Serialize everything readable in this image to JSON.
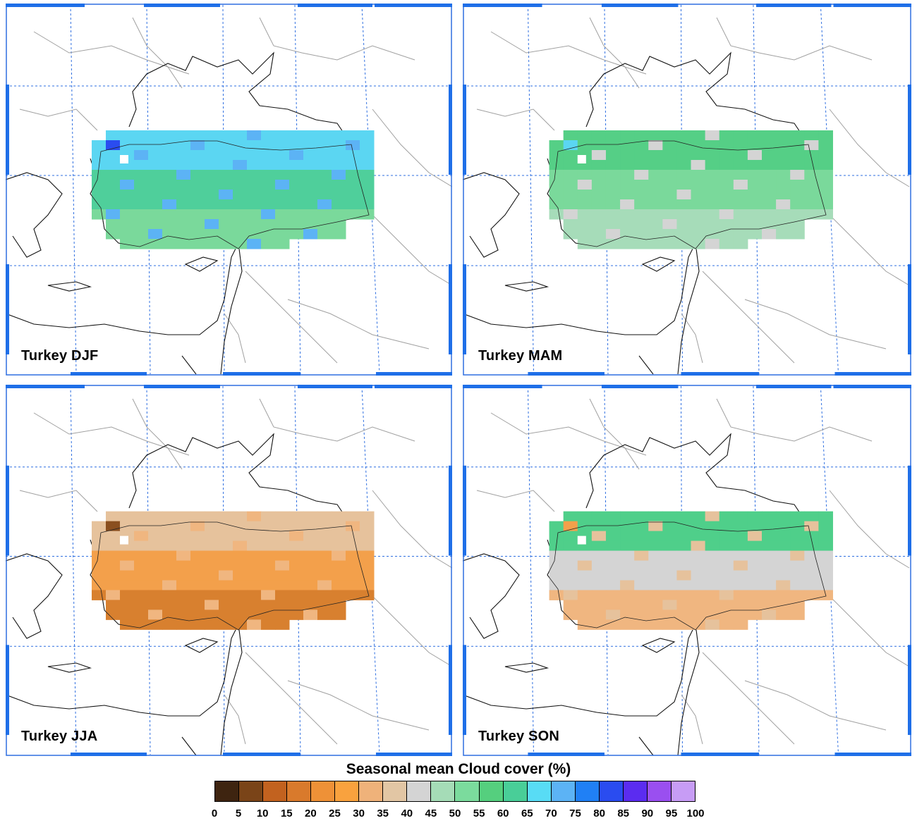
{
  "panels": [
    {
      "id": "djf",
      "label": "Turkey DJF",
      "fill_levels": [
        10,
        12,
        12,
        11,
        10,
        11,
        12,
        13
      ],
      "colors": {
        "north": "#5bd6f2",
        "middle": "#4fcf9b",
        "south": "#7ad99b",
        "accent": "#5cb3f5",
        "dark": "#2a4cf0"
      }
    },
    {
      "id": "mam",
      "label": "Turkey MAM",
      "fill_levels": [
        10,
        10,
        11,
        11,
        10,
        10,
        11,
        11
      ],
      "colors": {
        "north": "#55cf86",
        "middle": "#7ad99b",
        "south": "#a6dcb9",
        "accent": "#d4d4d4",
        "dark": "#5bd6f2"
      }
    },
    {
      "id": "jja",
      "label": "Turkey JJA",
      "fill_levels": [
        6,
        5,
        5,
        4,
        4,
        3,
        5,
        7
      ],
      "colors": {
        "north": "#e6c29c",
        "middle": "#f3a04b",
        "south": "#d8802f",
        "accent": "#f0b680",
        "dark": "#8a4f1f"
      }
    },
    {
      "id": "son",
      "label": "Turkey SON",
      "fill_levels": [
        8,
        8,
        8,
        8,
        7,
        7,
        8,
        9
      ],
      "colors": {
        "north": "#4fcf8a",
        "middle": "#d4d4d4",
        "south": "#f0b680",
        "accent": "#e6c29c",
        "dark": "#f3a04b"
      }
    }
  ],
  "legend": {
    "title": "Seasonal mean Cloud cover (%)",
    "ticks": [
      "0",
      "5",
      "10",
      "15",
      "20",
      "25",
      "30",
      "35",
      "40",
      "45",
      "50",
      "55",
      "60",
      "65",
      "70",
      "75",
      "80",
      "85",
      "90",
      "95",
      "100"
    ],
    "colors": [
      "#3e2410",
      "#7a4418",
      "#c2621f",
      "#d97a2c",
      "#ee9137",
      "#f9a23e",
      "#efb27a",
      "#e2c6a4",
      "#d4d4d4",
      "#a5dcb7",
      "#7bdb9d",
      "#55cf7e",
      "#49ce98",
      "#58dcf5",
      "#5cb3f5",
      "#2080f5",
      "#2a4cf0",
      "#5b2cf0",
      "#9a4ff0",
      "#c79cf5"
    ]
  }
}
